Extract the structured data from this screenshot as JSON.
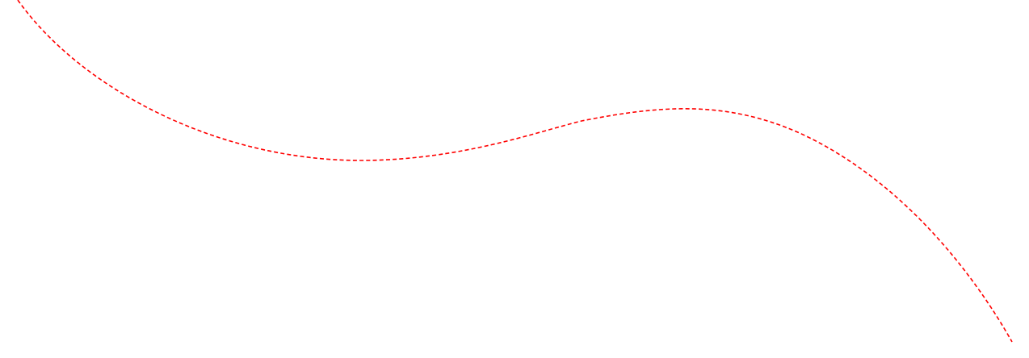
{
  "background_color": "#ffffff",
  "curve": {
    "stroke_color": "#ff0000",
    "line_style": "dashed"
  }
}
